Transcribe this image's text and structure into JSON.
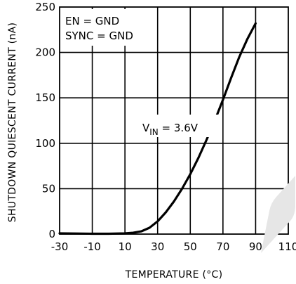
{
  "chart_data": {
    "type": "line",
    "xlabel": "TEMPERATURE (°C)",
    "ylabel": "SHUTDOWN QUIESCENT CURRENT (nA)",
    "xlim": [
      -30,
      110
    ],
    "ylim": [
      0,
      250
    ],
    "x_ticks": [
      -30,
      -10,
      10,
      30,
      50,
      70,
      90,
      110
    ],
    "y_ticks": [
      0,
      50,
      100,
      150,
      200,
      250
    ],
    "x_tick_labels": [
      "-30",
      "-10",
      "10",
      "30",
      "50",
      "70",
      "90",
      "110"
    ],
    "y_tick_labels": [
      "0",
      "50",
      "100",
      "150",
      "200",
      "250"
    ],
    "grid": true,
    "conditions": [
      "EN = GND",
      "SYNC = GND"
    ],
    "series": [
      {
        "label_main": "V",
        "label_sub": "IN",
        "label_value": " = 3.6V",
        "x": [
          -30,
          -20,
          -10,
          0,
          10,
          15,
          20,
          25,
          30,
          35,
          40,
          45,
          50,
          55,
          60,
          65,
          70,
          75,
          80,
          85,
          90
        ],
        "y": [
          0.8,
          0.6,
          0.4,
          0.4,
          0.8,
          1.5,
          3,
          7,
          14,
          24,
          36,
          50,
          66,
          84,
          104,
          125,
          148,
          172,
          195,
          215,
          232
        ]
      }
    ]
  }
}
